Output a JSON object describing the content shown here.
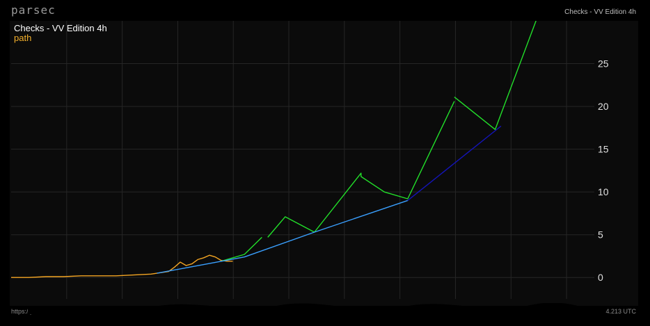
{
  "app": {
    "brand": "parsec"
  },
  "header": {
    "right_title": "Checks - VV Edition 4h"
  },
  "legend": {
    "title": "Checks - VV Edition 4h",
    "series_label": "path"
  },
  "footer": {
    "left_text": "https://pa",
    "right_text": "4.213 UTC"
  },
  "colors": {
    "background": "#0b0b0b",
    "grid": "#262626",
    "price": "#f5a623",
    "path_green": "#22e02a",
    "trend_blue_light": "#3aa0ff",
    "trend_blue_dark": "#1414b8",
    "axis_text": "#e0e0e0"
  },
  "chart_data": {
    "type": "line",
    "y_axis": {
      "position": "right",
      "ticks": [
        0,
        5,
        10,
        15,
        20,
        25
      ],
      "ylim": [
        -2.5,
        30
      ]
    },
    "grid": true,
    "x_labels_visible": false,
    "x_range": [
      0,
      100
    ],
    "series": [
      {
        "name": "path",
        "color": "#f5a623",
        "points": [
          [
            0,
            0.0
          ],
          [
            3,
            0.0
          ],
          [
            6,
            0.1
          ],
          [
            9,
            0.1
          ],
          [
            12,
            0.2
          ],
          [
            15,
            0.2
          ],
          [
            18,
            0.2
          ],
          [
            21,
            0.3
          ],
          [
            24,
            0.4
          ],
          [
            25,
            0.5
          ],
          [
            26,
            0.6
          ],
          [
            27,
            0.7
          ],
          [
            28,
            1.2
          ],
          [
            29,
            1.8
          ],
          [
            30,
            1.4
          ],
          [
            31,
            1.6
          ],
          [
            32,
            2.1
          ],
          [
            33,
            2.3
          ],
          [
            34,
            2.6
          ],
          [
            35,
            2.4
          ],
          [
            36,
            2.0
          ],
          [
            37,
            1.9
          ],
          [
            38,
            1.9
          ]
        ]
      },
      {
        "color": "#22e02a",
        "points": [
          [
            36,
            1.9
          ],
          [
            40,
            2.7
          ],
          [
            43,
            4.7
          ]
        ]
      },
      {
        "color": "#22e02a",
        "points": [
          [
            44,
            4.7
          ],
          [
            47,
            7.1
          ],
          [
            52,
            5.3
          ],
          [
            60,
            12.2
          ],
          [
            60,
            11.8
          ],
          [
            64,
            10.0
          ],
          [
            68,
            9.2
          ],
          [
            76,
            20.6
          ]
        ]
      },
      {
        "color": "#22e02a",
        "points": [
          [
            76,
            21.1
          ],
          [
            83,
            17.3
          ],
          [
            90,
            30
          ]
        ]
      },
      {
        "color": "#3aa0ff",
        "points": [
          [
            25,
            0.5
          ],
          [
            40,
            2.4
          ],
          [
            52,
            5.3
          ],
          [
            68,
            9.0
          ]
        ]
      },
      {
        "color": "#1414b8",
        "points": [
          [
            68,
            9.0
          ],
          [
            84,
            17.7
          ]
        ]
      }
    ]
  }
}
